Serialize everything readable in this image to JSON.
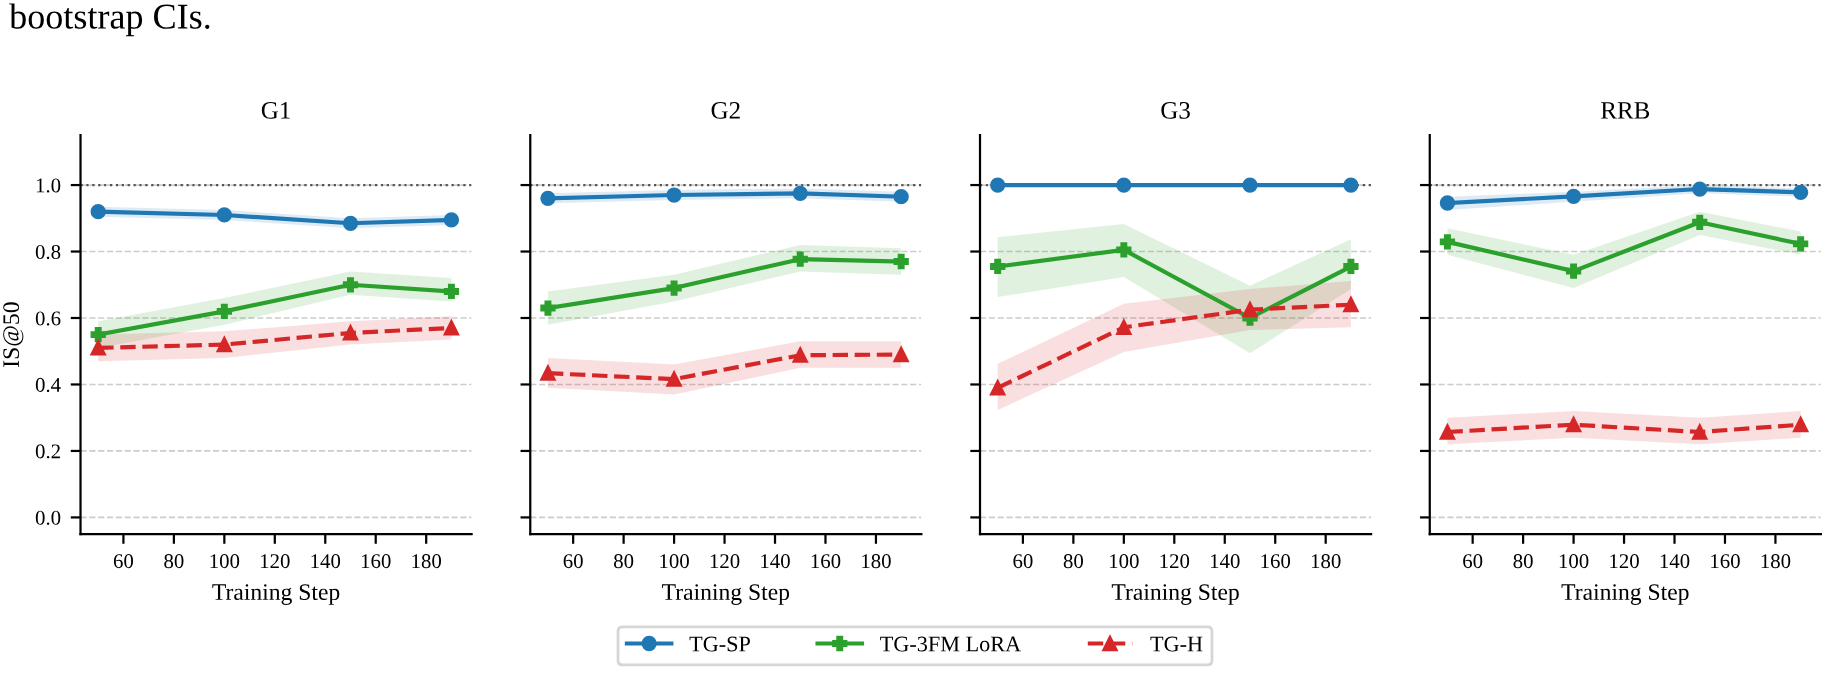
{
  "chart_data": [
    {
      "type": "line",
      "title": "G1",
      "xlabel": "Training Step",
      "ylabel": "IS@50",
      "annotations": [
        "bootstrap CIs."
      ],
      "x": [
        50,
        100,
        150,
        190
      ],
      "xlim": [
        43,
        198
      ],
      "xticks": [
        60,
        80,
        100,
        120,
        140,
        160,
        180
      ],
      "ylim": [
        -0.05,
        1.15
      ],
      "yticks": [
        {
          "value": 0,
          "label": "0.0"
        },
        0.2,
        0.4,
        0.6,
        0.8,
        {
          "value": 1,
          "label": "1.0"
        }
      ],
      "grid": "y",
      "legend": "bottom",
      "ref_lines": [
        {
          "axis": "y",
          "value": 1.0,
          "color": "#555555",
          "line_style": "dotted"
        }
      ],
      "series": [
        {
          "name": "TG-SP",
          "color": "#1f77b4",
          "marker": "circle",
          "line_style": "solid",
          "values": [
            0.92,
            0.91,
            0.885,
            0.895
          ],
          "lower": [
            0.905,
            0.895,
            0.87,
            0.88
          ],
          "upper": [
            0.935,
            0.925,
            0.9,
            0.91
          ]
        },
        {
          "name": "TG-3FM LoRA",
          "color": "#2ca02c",
          "marker": "cross",
          "line_style": "solid",
          "values": [
            0.55,
            0.62,
            0.7,
            0.68
          ],
          "lower": [
            0.51,
            0.58,
            0.67,
            0.65
          ],
          "upper": [
            0.59,
            0.66,
            0.74,
            0.72
          ]
        },
        {
          "name": "TG-H",
          "color": "#d62728",
          "marker": "triangle",
          "line_style": "dashed",
          "values": [
            0.51,
            0.52,
            0.555,
            0.57
          ],
          "lower": [
            0.47,
            0.48,
            0.52,
            0.535
          ],
          "upper": [
            0.55,
            0.56,
            0.59,
            0.605
          ]
        }
      ]
    },
    {
      "type": "line",
      "title": "G2",
      "xlabel": "Training Step",
      "x": [
        50,
        100,
        150,
        190
      ],
      "xlim": [
        43,
        198
      ],
      "xticks": [
        60,
        80,
        100,
        120,
        140,
        160,
        180
      ],
      "ylim": [
        -0.05,
        1.15
      ],
      "yticks": [
        0.0,
        0.2,
        0.4,
        0.6,
        0.8,
        1.0
      ],
      "tick_labels": "x",
      "grid": "y",
      "ref_lines": [
        {
          "axis": "y",
          "value": 1.0,
          "color": "#555555",
          "line_style": "dotted"
        }
      ],
      "series": [
        {
          "color": "#1f77b4",
          "marker": "circle",
          "line_style": "solid",
          "values": [
            0.96,
            0.97,
            0.975,
            0.965
          ],
          "lower": [
            0.945,
            0.955,
            0.96,
            0.95
          ],
          "upper": [
            0.975,
            0.985,
            0.99,
            0.98
          ]
        },
        {
          "color": "#2ca02c",
          "marker": "cross",
          "line_style": "solid",
          "values": [
            0.63,
            0.69,
            0.777,
            0.77
          ],
          "lower": [
            0.58,
            0.65,
            0.74,
            0.73
          ],
          "upper": [
            0.68,
            0.73,
            0.82,
            0.81
          ]
        },
        {
          "color": "#d62728",
          "marker": "triangle",
          "line_style": "dashed",
          "values": [
            0.434,
            0.416,
            0.488,
            0.49
          ],
          "lower": [
            0.39,
            0.37,
            0.45,
            0.45
          ],
          "upper": [
            0.48,
            0.46,
            0.53,
            0.53
          ]
        }
      ]
    },
    {
      "type": "line",
      "title": "G3",
      "xlabel": "Training Step",
      "x": [
        50,
        100,
        150,
        190
      ],
      "xlim": [
        43,
        198
      ],
      "xticks": [
        60,
        80,
        100,
        120,
        140,
        160,
        180
      ],
      "ylim": [
        -0.05,
        1.15
      ],
      "yticks": [
        0.0,
        0.2,
        0.4,
        0.6,
        0.8,
        1.0
      ],
      "tick_labels": "x",
      "grid": "y",
      "ref_lines": [
        {
          "axis": "y",
          "value": 1.0,
          "color": "#555555",
          "line_style": "dotted"
        }
      ],
      "series": [
        {
          "color": "#1f77b4",
          "marker": "circle",
          "line_style": "solid",
          "values": [
            1.0,
            1.0,
            1.0,
            1.0
          ]
        },
        {
          "color": "#2ca02c",
          "marker": "cross",
          "line_style": "solid",
          "values": [
            0.755,
            0.805,
            0.6,
            0.755
          ],
          "lower": [
            0.663,
            0.723,
            0.494,
            0.687
          ],
          "upper": [
            0.843,
            0.883,
            0.697,
            0.837
          ]
        },
        {
          "color": "#d62728",
          "marker": "triangle",
          "line_style": "dashed",
          "values": [
            0.39,
            0.572,
            0.625,
            0.64
          ],
          "lower": [
            0.323,
            0.498,
            0.564,
            0.572
          ],
          "upper": [
            0.462,
            0.643,
            0.687,
            0.711
          ]
        }
      ]
    },
    {
      "type": "line",
      "title": "RRB",
      "xlabel": "Training Step",
      "x": [
        50,
        100,
        150,
        190
      ],
      "xlim": [
        43,
        198
      ],
      "xticks": [
        60,
        80,
        100,
        120,
        140,
        160,
        180
      ],
      "ylim": [
        -0.05,
        1.15
      ],
      "yticks": [
        0.0,
        0.2,
        0.4,
        0.6,
        0.8,
        1.0
      ],
      "tick_labels": "x",
      "grid": "y",
      "ref_lines": [
        {
          "axis": "y",
          "value": 1.0,
          "color": "#555555",
          "line_style": "dotted"
        }
      ],
      "series": [
        {
          "color": "#1f77b4",
          "marker": "circle",
          "line_style": "solid",
          "values": [
            0.946,
            0.966,
            0.988,
            0.978
          ],
          "lower": [
            0.925,
            0.95,
            0.975,
            0.965
          ],
          "upper": [
            0.965,
            0.98,
            1.0,
            0.99
          ]
        },
        {
          "color": "#2ca02c",
          "marker": "cross",
          "line_style": "solid",
          "values": [
            0.829,
            0.741,
            0.888,
            0.823
          ],
          "lower": [
            0.79,
            0.69,
            0.85,
            0.79
          ],
          "upper": [
            0.87,
            0.79,
            0.92,
            0.86
          ]
        },
        {
          "color": "#d62728",
          "marker": "triangle",
          "line_style": "dashed",
          "values": [
            0.257,
            0.279,
            0.257,
            0.279
          ],
          "lower": [
            0.22,
            0.24,
            0.22,
            0.24
          ],
          "upper": [
            0.3,
            0.32,
            0.3,
            0.32
          ]
        }
      ]
    }
  ]
}
